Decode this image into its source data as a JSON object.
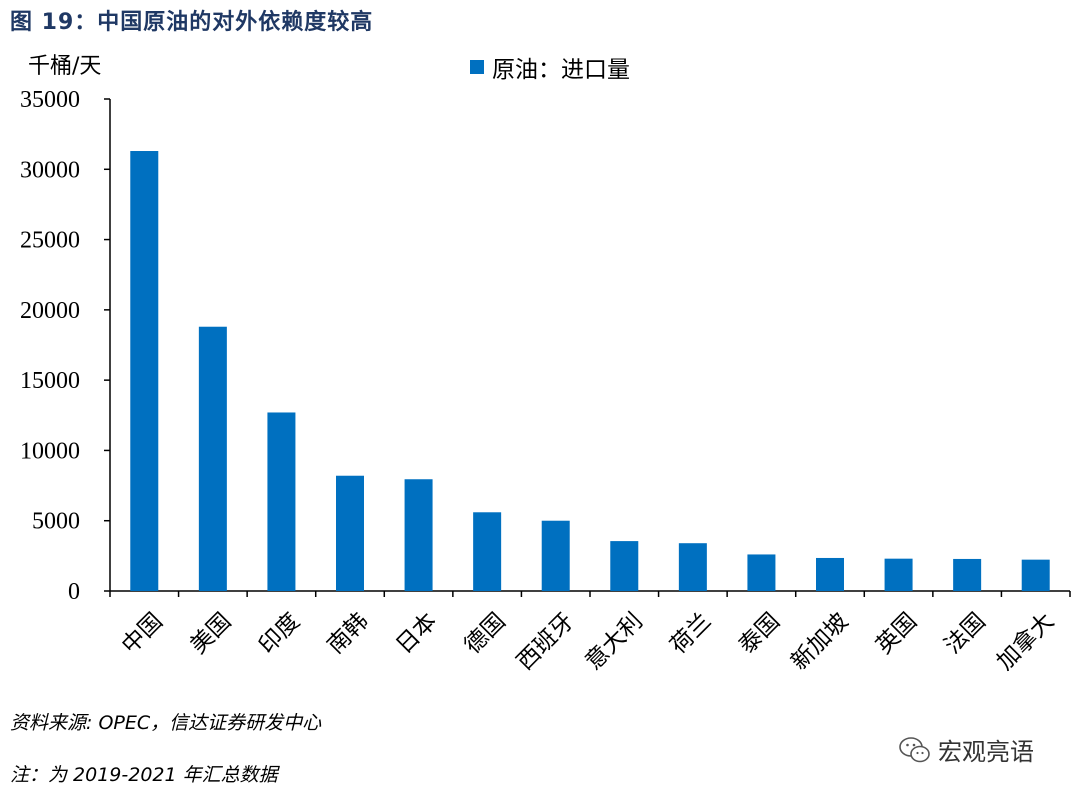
{
  "figure": {
    "title": "图 19：中国原油的对外依赖度较高",
    "unit": "千桶/天",
    "source": "资料来源: OPEC，信达证券研发中心",
    "note": "注：为 2019-2021 年汇总数据",
    "watermark": "宏观亮语",
    "watermark_icon": "wechat-icon",
    "accent_color": "#0070c0",
    "title_color": "#1f3864"
  },
  "chart_data": {
    "type": "bar",
    "title": "",
    "xlabel": "",
    "ylabel": "千桶/天",
    "ylim": [
      0,
      35000
    ],
    "yticks": [
      0,
      5000,
      10000,
      15000,
      20000,
      25000,
      30000,
      35000
    ],
    "grid": false,
    "legend_position": "top-center",
    "categories": [
      "中国",
      "美国",
      "印度",
      "南韩",
      "日本",
      "德国",
      "西班牙",
      "意大利",
      "荷兰",
      "泰国",
      "新加坡",
      "英国",
      "法国",
      "加拿大"
    ],
    "series": [
      {
        "name": "原油：进口量",
        "color": "#0070c0",
        "values": [
          31300,
          18800,
          12700,
          8200,
          7950,
          5600,
          5000,
          3550,
          3400,
          2600,
          2350,
          2300,
          2280,
          2230
        ]
      }
    ]
  }
}
